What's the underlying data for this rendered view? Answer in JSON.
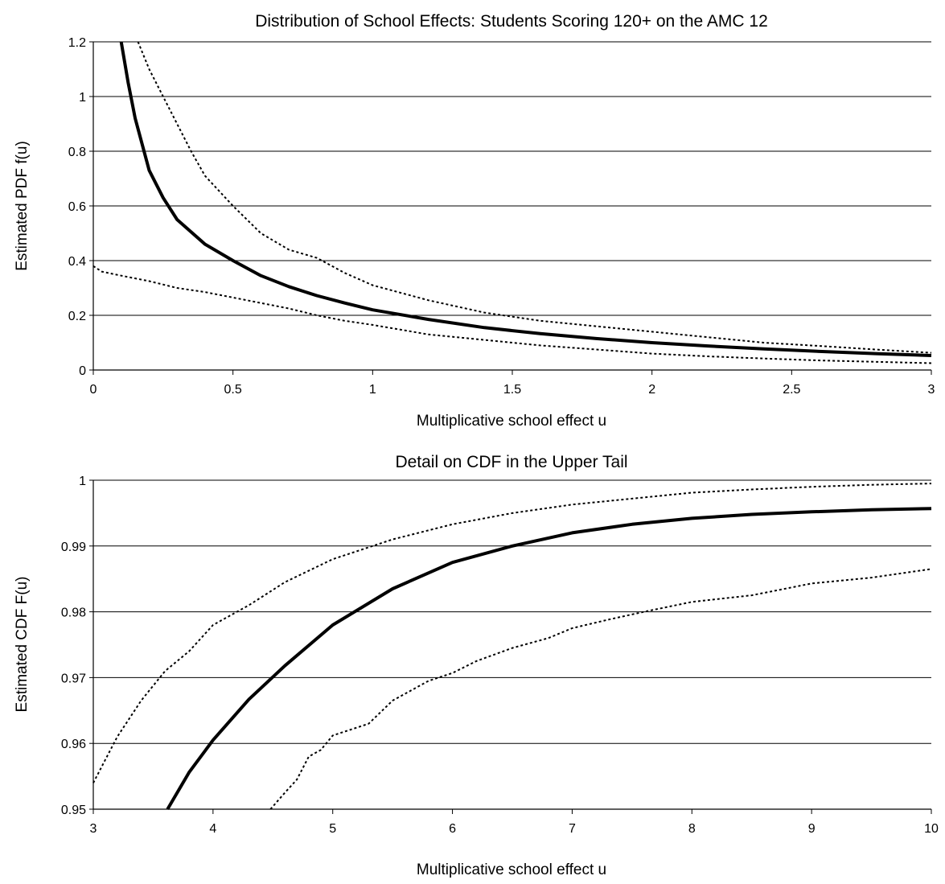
{
  "chart_data": [
    {
      "type": "line",
      "title": "Distribution of School Effects: Students Scoring 120+ on the AMC 12",
      "xlabel": "Multiplicative school effect u",
      "ylabel": "Estimated PDF f(u)",
      "xlim": [
        0,
        3
      ],
      "ylim": [
        0,
        1.2
      ],
      "x_ticks": [
        0,
        0.5,
        1,
        1.5,
        2,
        2.5,
        3
      ],
      "x_tick_labels": [
        "0",
        "0.5",
        "1",
        "1.5",
        "2",
        "2.5",
        "3"
      ],
      "y_ticks": [
        0,
        0.2,
        0.4,
        0.6,
        0.8,
        1,
        1.2
      ],
      "y_tick_labels": [
        "0",
        "0.2",
        "0.4",
        "0.6",
        "0.8",
        "1",
        "1.2"
      ],
      "grid": true,
      "series": [
        {
          "style": "solid-thick",
          "points": [
            [
              0.1,
              1.2
            ],
            [
              0.125,
              1.05
            ],
            [
              0.15,
              0.92
            ],
            [
              0.2,
              0.73
            ],
            [
              0.25,
              0.63
            ],
            [
              0.3,
              0.55
            ],
            [
              0.4,
              0.46
            ],
            [
              0.5,
              0.4
            ],
            [
              0.6,
              0.345
            ],
            [
              0.7,
              0.305
            ],
            [
              0.8,
              0.272
            ],
            [
              0.9,
              0.245
            ],
            [
              1.0,
              0.22
            ],
            [
              1.2,
              0.185
            ],
            [
              1.4,
              0.155
            ],
            [
              1.6,
              0.133
            ],
            [
              1.8,
              0.115
            ],
            [
              2.0,
              0.1
            ],
            [
              2.2,
              0.088
            ],
            [
              2.4,
              0.077
            ],
            [
              2.6,
              0.068
            ],
            [
              2.8,
              0.06
            ],
            [
              3.0,
              0.053
            ]
          ]
        },
        {
          "style": "dotted",
          "points": [
            [
              0.16,
              1.2
            ],
            [
              0.2,
              1.1
            ],
            [
              0.25,
              1.0
            ],
            [
              0.3,
              0.9
            ],
            [
              0.35,
              0.8
            ],
            [
              0.4,
              0.71
            ],
            [
              0.5,
              0.6
            ],
            [
              0.6,
              0.5
            ],
            [
              0.7,
              0.44
            ],
            [
              0.8,
              0.41
            ],
            [
              0.9,
              0.355
            ],
            [
              1.0,
              0.31
            ],
            [
              1.2,
              0.255
            ],
            [
              1.4,
              0.21
            ],
            [
              1.6,
              0.18
            ],
            [
              1.8,
              0.16
            ],
            [
              2.0,
              0.14
            ],
            [
              2.2,
              0.12
            ],
            [
              2.4,
              0.1
            ],
            [
              2.6,
              0.088
            ],
            [
              2.8,
              0.075
            ],
            [
              3.0,
              0.063
            ]
          ]
        },
        {
          "style": "dotted",
          "points": [
            [
              0.0,
              0.38
            ],
            [
              0.03,
              0.36
            ],
            [
              0.1,
              0.345
            ],
            [
              0.2,
              0.325
            ],
            [
              0.3,
              0.3
            ],
            [
              0.4,
              0.285
            ],
            [
              0.5,
              0.265
            ],
            [
              0.6,
              0.245
            ],
            [
              0.7,
              0.225
            ],
            [
              0.8,
              0.2
            ],
            [
              0.9,
              0.18
            ],
            [
              1.0,
              0.165
            ],
            [
              1.2,
              0.13
            ],
            [
              1.4,
              0.11
            ],
            [
              1.6,
              0.09
            ],
            [
              1.8,
              0.075
            ],
            [
              2.0,
              0.06
            ],
            [
              2.2,
              0.05
            ],
            [
              2.4,
              0.042
            ],
            [
              2.6,
              0.035
            ],
            [
              2.8,
              0.03
            ],
            [
              3.0,
              0.025
            ]
          ]
        }
      ]
    },
    {
      "type": "line",
      "title": "Detail on CDF in the Upper Tail",
      "xlabel": "Multiplicative school effect u",
      "ylabel": "Estimated CDF F(u)",
      "xlim": [
        3,
        10
      ],
      "ylim": [
        0.95,
        1
      ],
      "x_ticks": [
        3,
        4,
        5,
        6,
        7,
        8,
        9,
        10
      ],
      "x_tick_labels": [
        "3",
        "4",
        "5",
        "6",
        "7",
        "8",
        "9",
        "10"
      ],
      "y_ticks": [
        0.95,
        0.96,
        0.97,
        0.98,
        0.99,
        1
      ],
      "y_tick_labels": [
        "0.95",
        "0.96",
        "0.97",
        "0.98",
        "0.99",
        "1"
      ],
      "grid": true,
      "series": [
        {
          "style": "solid-thick",
          "points": [
            [
              3.62,
              0.95
            ],
            [
              3.8,
              0.9556
            ],
            [
              4.0,
              0.9605
            ],
            [
              4.3,
              0.9667
            ],
            [
              4.6,
              0.9718
            ],
            [
              5.0,
              0.978
            ],
            [
              5.5,
              0.9835
            ],
            [
              6.0,
              0.9875
            ],
            [
              6.5,
              0.99
            ],
            [
              7.0,
              0.992
            ],
            [
              7.5,
              0.9933
            ],
            [
              8.0,
              0.9942
            ],
            [
              8.5,
              0.9948
            ],
            [
              9.0,
              0.9952
            ],
            [
              9.5,
              0.9955
            ],
            [
              10.0,
              0.9957
            ]
          ]
        },
        {
          "style": "dotted",
          "points": [
            [
              3.0,
              0.954
            ],
            [
              3.1,
              0.9575
            ],
            [
              3.2,
              0.961
            ],
            [
              3.4,
              0.9665
            ],
            [
              3.6,
              0.971
            ],
            [
              3.8,
              0.974
            ],
            [
              4.0,
              0.978
            ],
            [
              4.3,
              0.981
            ],
            [
              4.6,
              0.9845
            ],
            [
              5.0,
              0.988
            ],
            [
              5.5,
              0.991
            ],
            [
              6.0,
              0.9933
            ],
            [
              6.5,
              0.995
            ],
            [
              7.0,
              0.9963
            ],
            [
              7.5,
              0.9972
            ],
            [
              8.0,
              0.9981
            ],
            [
              8.5,
              0.9986
            ],
            [
              9.0,
              0.999
            ],
            [
              9.5,
              0.9993
            ],
            [
              10.0,
              0.9995
            ]
          ]
        },
        {
          "style": "dotted",
          "points": [
            [
              4.48,
              0.95
            ],
            [
              4.6,
              0.9525
            ],
            [
              4.7,
              0.9545
            ],
            [
              4.8,
              0.958
            ],
            [
              4.9,
              0.959
            ],
            [
              5.0,
              0.9612
            ],
            [
              5.3,
              0.963
            ],
            [
              5.5,
              0.9665
            ],
            [
              5.8,
              0.9695
            ],
            [
              6.0,
              0.9707
            ],
            [
              6.2,
              0.9725
            ],
            [
              6.5,
              0.9745
            ],
            [
              6.8,
              0.976
            ],
            [
              7.0,
              0.9775
            ],
            [
              7.3,
              0.9788
            ],
            [
              7.6,
              0.98
            ],
            [
              8.0,
              0.9815
            ],
            [
              8.5,
              0.9825
            ],
            [
              9.0,
              0.9843
            ],
            [
              9.5,
              0.9852
            ],
            [
              10.0,
              0.9865
            ]
          ]
        }
      ]
    }
  ]
}
